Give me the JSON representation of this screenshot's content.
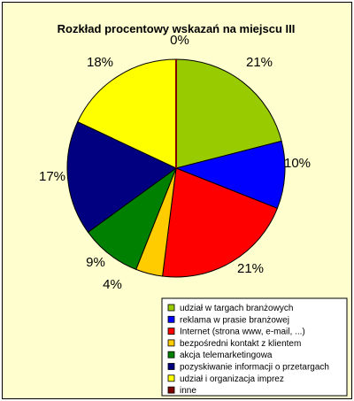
{
  "chart_data": {
    "type": "pie",
    "title": "Rozkład procentowy wskazań na miejscu III",
    "categories": [
      "udział w targach branżowych",
      "reklama w prasie branżowej",
      "Internet (strona www, e-mail, ...)",
      "bezpośredni kontakt z klientem",
      "akcja telemarketingowa",
      "pozyskiwanie informacji o przetargach",
      "udział i organizacja imprez",
      "inne"
    ],
    "values": [
      21,
      10,
      21,
      4,
      9,
      17,
      18,
      0
    ],
    "labels": [
      "21%",
      "10%",
      "21%",
      "4%",
      "9%",
      "17%",
      "18%",
      "0%"
    ],
    "colors": [
      "#99cc00",
      "#0000ff",
      "#ff0000",
      "#ffcc00",
      "#008000",
      "#000080",
      "#ffff00",
      "#800000"
    ],
    "legend_position": "bottom-right",
    "background": "#fefece"
  }
}
